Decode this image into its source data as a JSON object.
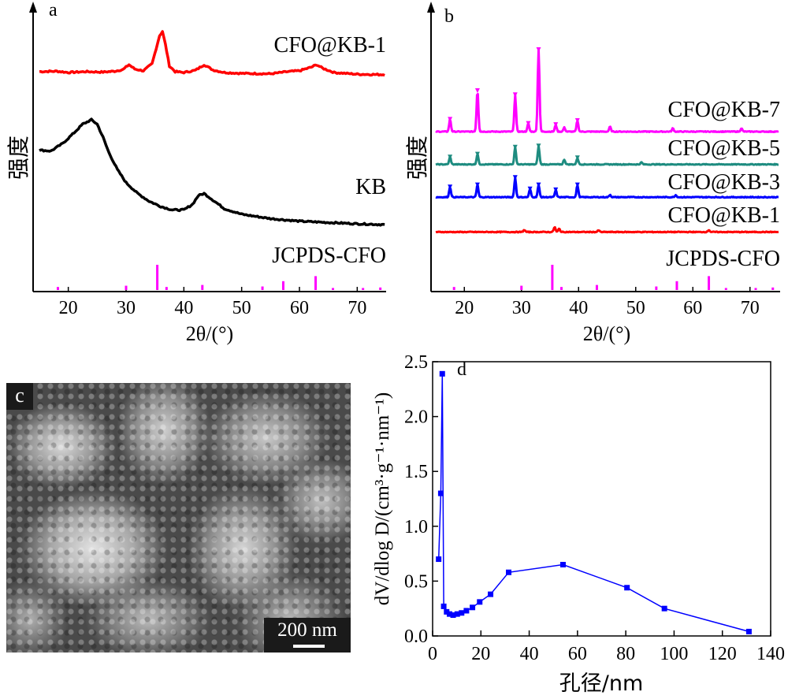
{
  "chart_data": [
    {
      "panel": "a",
      "type": "line",
      "xlabel": "2θ/(°)",
      "ylabel": "强度",
      "xlim": [
        15,
        75
      ],
      "xticks": [
        20,
        30,
        40,
        50,
        60,
        70
      ],
      "y_tick_labels": false,
      "grid": false,
      "series": [
        {
          "name": "CFO@KB-1",
          "color": "#ff0000",
          "x": [
            15,
            18,
            20,
            23,
            26,
            28,
            29.5,
            30.5,
            31.5,
            33,
            34.5,
            35.2,
            35.8,
            36.3,
            36.8,
            37.5,
            38.5,
            40,
            42,
            43.5,
            45,
            47,
            50,
            55,
            58,
            60,
            62,
            63,
            64,
            66,
            70,
            75
          ],
          "y": [
            0.92,
            0.93,
            0.9,
            0.92,
            0.91,
            0.93,
            0.97,
            1.08,
            0.98,
            0.94,
            1.1,
            1.45,
            1.75,
            1.85,
            1.55,
            1.05,
            0.92,
            0.9,
            0.95,
            1.08,
            0.96,
            0.9,
            0.88,
            0.87,
            0.92,
            0.94,
            1.02,
            1.08,
            1.0,
            0.9,
            0.86,
            0.85
          ]
        },
        {
          "name": "KB",
          "color": "#000000",
          "x": [
            15,
            17,
            19,
            21,
            22.5,
            24,
            25,
            26,
            27,
            28.5,
            30,
            32,
            34,
            36,
            38,
            40,
            41.5,
            42.5,
            43.5,
            45,
            47,
            50,
            55,
            60,
            65,
            70,
            75
          ],
          "y": [
            3.9,
            3.88,
            4.05,
            4.3,
            4.5,
            4.6,
            4.5,
            4.2,
            3.85,
            3.45,
            3.15,
            2.9,
            2.72,
            2.6,
            2.52,
            2.52,
            2.65,
            2.85,
            2.9,
            2.75,
            2.55,
            2.42,
            2.32,
            2.26,
            2.23,
            2.2,
            2.18
          ]
        }
      ],
      "reference": {
        "name": "JCPDS-CFO",
        "color": "#ff00ff",
        "peaks": [
          {
            "x": 18.2,
            "h": 0.12
          },
          {
            "x": 30.0,
            "h": 0.17
          },
          {
            "x": 35.4,
            "h": 1.0
          },
          {
            "x": 37.0,
            "h": 0.12
          },
          {
            "x": 43.2,
            "h": 0.2
          },
          {
            "x": 53.6,
            "h": 0.14
          },
          {
            "x": 57.2,
            "h": 0.35
          },
          {
            "x": 62.8,
            "h": 0.55
          },
          {
            "x": 65.8,
            "h": 0.08
          },
          {
            "x": 71.0,
            "h": 0.08
          },
          {
            "x": 74.0,
            "h": 0.1
          }
        ]
      }
    },
    {
      "panel": "b",
      "type": "line",
      "xlabel": "2θ/(°)",
      "ylabel": "强度",
      "xlim": [
        15,
        75
      ],
      "xticks": [
        20,
        30,
        40,
        50,
        60,
        70
      ],
      "y_tick_labels": false,
      "grid": false,
      "series": [
        {
          "name": "CFO@KB-7",
          "color": "#ff00ff",
          "baseline": 3.0,
          "peaks": [
            {
              "x": 17.5,
              "h": 0.3
            },
            {
              "x": 22.3,
              "h": 1.0
            },
            {
              "x": 28.9,
              "h": 0.9
            },
            {
              "x": 31.2,
              "h": 0.2
            },
            {
              "x": 33.0,
              "h": 2.0
            },
            {
              "x": 36.0,
              "h": 0.17
            },
            {
              "x": 37.5,
              "h": 0.1
            },
            {
              "x": 39.8,
              "h": 0.27
            },
            {
              "x": 45.5,
              "h": 0.12
            },
            {
              "x": 56.5,
              "h": 0.08
            },
            {
              "x": 68.5,
              "h": 0.08
            }
          ]
        },
        {
          "name": "CFO@KB-5",
          "color": "#1e8c80",
          "baseline": 2.2,
          "peaks": [
            {
              "x": 17.5,
              "h": 0.18
            },
            {
              "x": 22.3,
              "h": 0.25
            },
            {
              "x": 28.9,
              "h": 0.42
            },
            {
              "x": 33.0,
              "h": 0.45
            },
            {
              "x": 37.5,
              "h": 0.12
            },
            {
              "x": 39.8,
              "h": 0.16
            },
            {
              "x": 51.0,
              "h": 0.05
            }
          ]
        },
        {
          "name": "CFO@KB-3",
          "color": "#0000ff",
          "baseline": 1.4,
          "peaks": [
            {
              "x": 17.5,
              "h": 0.25
            },
            {
              "x": 22.3,
              "h": 0.3
            },
            {
              "x": 28.9,
              "h": 0.48
            },
            {
              "x": 31.5,
              "h": 0.2
            },
            {
              "x": 33.0,
              "h": 0.3
            },
            {
              "x": 36.0,
              "h": 0.18
            },
            {
              "x": 39.8,
              "h": 0.3
            },
            {
              "x": 45.5,
              "h": 0.06
            },
            {
              "x": 57.0,
              "h": 0.05
            }
          ]
        },
        {
          "name": "CFO@KB-1",
          "color": "#ff0000",
          "baseline": 0.55,
          "peaks": [
            {
              "x": 30.5,
              "h": 0.05
            },
            {
              "x": 35.8,
              "h": 0.12
            },
            {
              "x": 36.6,
              "h": 0.08
            },
            {
              "x": 43.5,
              "h": 0.04
            },
            {
              "x": 62.8,
              "h": 0.05
            }
          ]
        }
      ],
      "reference": {
        "name": "JCPDS-CFO",
        "color": "#ff00ff",
        "peaks": [
          {
            "x": 18.2,
            "h": 0.12
          },
          {
            "x": 30.0,
            "h": 0.17
          },
          {
            "x": 35.4,
            "h": 1.0
          },
          {
            "x": 37.0,
            "h": 0.12
          },
          {
            "x": 43.2,
            "h": 0.2
          },
          {
            "x": 53.6,
            "h": 0.14
          },
          {
            "x": 57.2,
            "h": 0.35
          },
          {
            "x": 62.8,
            "h": 0.55
          },
          {
            "x": 65.8,
            "h": 0.08
          },
          {
            "x": 71.0,
            "h": 0.08
          },
          {
            "x": 74.0,
            "h": 0.1
          }
        ]
      }
    },
    {
      "panel": "d",
      "type": "line",
      "xlabel": "孔径/nm",
      "ylabel": "dV/dlog D/(cm³·g⁻¹·nm⁻¹)",
      "xlim": [
        0,
        140
      ],
      "ylim": [
        0,
        2.5
      ],
      "xticks": [
        0,
        20,
        40,
        60,
        80,
        100,
        120,
        140
      ],
      "yticks": [
        0.0,
        0.5,
        1.0,
        1.5,
        2.0,
        2.5
      ],
      "x_tick_labels": [
        "0",
        "20",
        "40",
        "60",
        "80",
        "100",
        "120",
        "140"
      ],
      "y_tick_labels": [
        "0.0",
        "0.5",
        "1.0",
        "1.5",
        "2.0",
        "2.5"
      ],
      "grid": false,
      "series": [
        {
          "color": "#0000ff",
          "marker": "square",
          "x": [
            2.5,
            3.4,
            4.0,
            4.6,
            5.8,
            7.0,
            8.5,
            10.2,
            12.0,
            14.0,
            16.5,
            19.5,
            24.0,
            31.5,
            54.0,
            80.5,
            96.0,
            131.0
          ],
          "y": [
            0.7,
            1.3,
            2.39,
            0.27,
            0.22,
            0.2,
            0.19,
            0.2,
            0.21,
            0.23,
            0.26,
            0.31,
            0.38,
            0.58,
            0.65,
            0.44,
            0.25,
            0.04
          ]
        }
      ]
    }
  ],
  "panel_letters": {
    "a": "a",
    "b": "b",
    "c": "c",
    "d": "d"
  },
  "panel_c": {
    "type": "micrograph",
    "scale_bar_label": "200 nm"
  }
}
